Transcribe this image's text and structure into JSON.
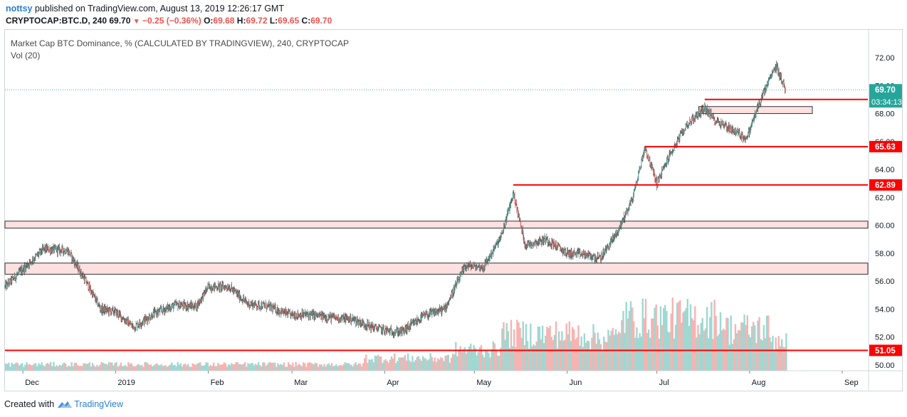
{
  "header": {
    "author": "nottsy",
    "published_text": "published on TradingView.com, August 13, 2019 12:26:17 GMT",
    "symbol": "CRYPTOCAP:BTC.D, 240",
    "last": "69.70",
    "change": "−0.25 (−0.36%)",
    "o_label": "O:",
    "o_value": "69.68",
    "h_label": "H:",
    "h_value": "69.72",
    "l_label": "L:",
    "l_value": "69.65",
    "c_label": "C:",
    "c_value": "69.70"
  },
  "legend": {
    "title": "Market Cap BTC Dominance, % (CALCULATED BY TRADINGVIEW), 240, CRYPTOCAP",
    "volume": "Vol (20)"
  },
  "footer": {
    "created_with": "Created with",
    "brand": "TradingView"
  },
  "colors": {
    "up": "#26a69a",
    "down": "#ef5350",
    "line": "#ff0000",
    "zone_fill": "#fde0e0",
    "zone_border": "#333333",
    "vol_up": "#9fd8d2",
    "vol_down": "#f5b4b2",
    "last_line": "#26a69a"
  },
  "chart_data": {
    "type": "candlestick",
    "ylim": [
      49.5,
      73
    ],
    "y_ticks": [
      "50.00",
      "52.00",
      "54.00",
      "56.00",
      "58.00",
      "60.00",
      "62.00",
      "64.00",
      "66.00",
      "68.00",
      "70.00",
      "72.00"
    ],
    "x_ticks": [
      "Dec",
      "2019",
      "Feb",
      "Mar",
      "Apr",
      "May",
      "Jun",
      "Jul",
      "Aug",
      "Sep"
    ],
    "price_path": [
      [
        "2018-11-25",
        55.6
      ],
      [
        "2018-12-03",
        57.3
      ],
      [
        "2018-12-08",
        58.3
      ],
      [
        "2018-12-16",
        58.2
      ],
      [
        "2018-12-22",
        56.0
      ],
      [
        "2018-12-27",
        54.0
      ],
      [
        "2019-01-01",
        53.8
      ],
      [
        "2019-01-07",
        52.7
      ],
      [
        "2019-01-14",
        53.7
      ],
      [
        "2019-01-21",
        54.3
      ],
      [
        "2019-01-28",
        54.2
      ],
      [
        "2019-02-01",
        55.6
      ],
      [
        "2019-02-08",
        55.6
      ],
      [
        "2019-02-14",
        54.4
      ],
      [
        "2019-02-21",
        54.2
      ],
      [
        "2019-02-28",
        53.6
      ],
      [
        "2019-03-07",
        53.6
      ],
      [
        "2019-03-14",
        53.4
      ],
      [
        "2019-03-21",
        53.3
      ],
      [
        "2019-03-28",
        52.7
      ],
      [
        "2019-04-03",
        52.4
      ],
      [
        "2019-04-07",
        52.4
      ],
      [
        "2019-04-14",
        53.5
      ],
      [
        "2019-04-21",
        54.0
      ],
      [
        "2019-04-28",
        57.1
      ],
      [
        "2019-05-04",
        57.0
      ],
      [
        "2019-05-10",
        59.2
      ],
      [
        "2019-05-14",
        62.3
      ],
      [
        "2019-05-18",
        58.6
      ],
      [
        "2019-05-25",
        59.0
      ],
      [
        "2019-06-01",
        58.0
      ],
      [
        "2019-06-07",
        57.9
      ],
      [
        "2019-06-12",
        57.6
      ],
      [
        "2019-06-18",
        59.6
      ],
      [
        "2019-06-23",
        62.0
      ],
      [
        "2019-06-27",
        65.6
      ],
      [
        "2019-07-01",
        63.0
      ],
      [
        "2019-07-05",
        64.9
      ],
      [
        "2019-07-11",
        67.2
      ],
      [
        "2019-07-17",
        68.4
      ],
      [
        "2019-07-20",
        67.6
      ],
      [
        "2019-07-25",
        67.0
      ],
      [
        "2019-07-31",
        66.2
      ],
      [
        "2019-08-04",
        68.6
      ],
      [
        "2019-08-08",
        70.6
      ],
      [
        "2019-08-10",
        71.4
      ],
      [
        "2019-08-13",
        69.7
      ]
    ],
    "last_price": "69.70",
    "countdown": "03:34:13",
    "horizontal_lines": [
      {
        "price": 69.01,
        "label": "69.01",
        "from": "2019-07-17"
      },
      {
        "price": 65.63,
        "label": "65.63",
        "from": "2019-06-27"
      },
      {
        "price": 62.89,
        "label": "62.89",
        "from": "2019-05-14"
      },
      {
        "price": 51.05,
        "label": "51.05",
        "from": "2018-11-25"
      }
    ],
    "hidden_price_line": 69.01,
    "zones": [
      {
        "top": 60.3,
        "bottom": 59.8,
        "from": "2018-11-25",
        "to": "end"
      },
      {
        "top": 57.3,
        "bottom": 56.5,
        "from": "2018-11-25",
        "to": "end"
      },
      {
        "top": 68.5,
        "bottom": 68.0,
        "from": "2019-07-15",
        "to": "2019-08-22"
      }
    ],
    "volume_max_bar": 57.5
  }
}
